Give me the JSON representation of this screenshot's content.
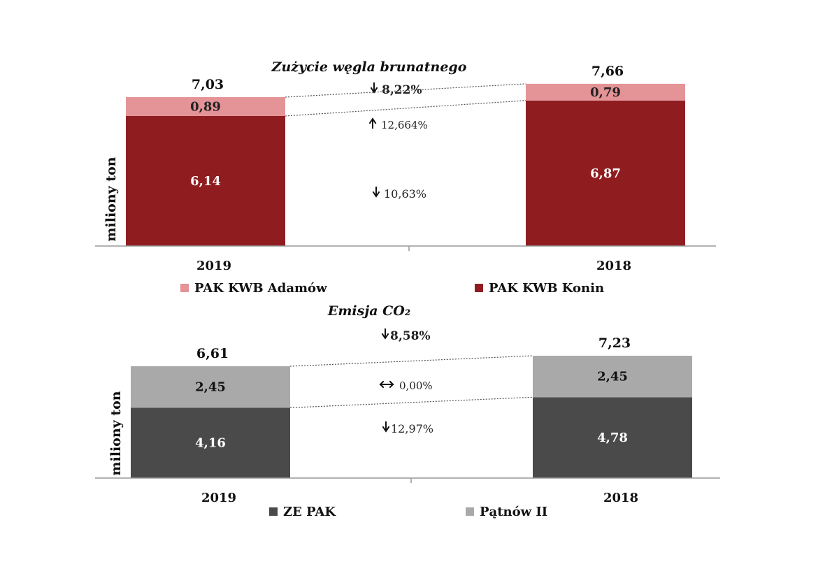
{
  "chart_data": [
    {
      "type": "bar",
      "stacked": true,
      "title": "Zużycie węgla brunatnego",
      "ylabel": "miliony ton",
      "categories": [
        "2019",
        "2018"
      ],
      "series": [
        {
          "name": "PAK KWB Konin",
          "values": [
            6.14,
            6.87
          ],
          "labels": [
            "6,14",
            "6,87"
          ],
          "color": "#8f1d20",
          "label_color": "#ffffff"
        },
        {
          "name": "PAK KWB Adamów",
          "values": [
            0.89,
            0.79
          ],
          "labels": [
            "0,89",
            "0,79"
          ],
          "color": "#e49397",
          "label_color": "#222222"
        }
      ],
      "totals": [
        "7,03",
        "7,66"
      ],
      "annotations": {
        "total_change": "8,22%",
        "top_change": "12,664%",
        "bottom_change": "10,63%"
      },
      "legend": [
        "PAK KWB Adamów",
        "PAK KWB Konin"
      ],
      "grid": false
    },
    {
      "type": "bar",
      "stacked": true,
      "title": "Emisja CO₂",
      "ylabel": "miliony ton",
      "categories": [
        "2019",
        "2018"
      ],
      "series": [
        {
          "name": "ZE PAK",
          "values": [
            4.16,
            4.78
          ],
          "labels": [
            "4,16",
            "4,78"
          ],
          "color": "#4a4a4a",
          "label_color": "#ffffff"
        },
        {
          "name": "Pątnów II",
          "values": [
            2.45,
            2.45
          ],
          "labels": [
            "2,45",
            "2,45"
          ],
          "color": "#a9a9a9",
          "label_color": "#111111"
        }
      ],
      "totals": [
        "6,61",
        "7,23"
      ],
      "annotations": {
        "total_change": "8,58%",
        "top_change": "0,00%",
        "bottom_change": "12,97%"
      },
      "legend": [
        "ZE PAK",
        "Pątnów II"
      ],
      "grid": false
    }
  ]
}
